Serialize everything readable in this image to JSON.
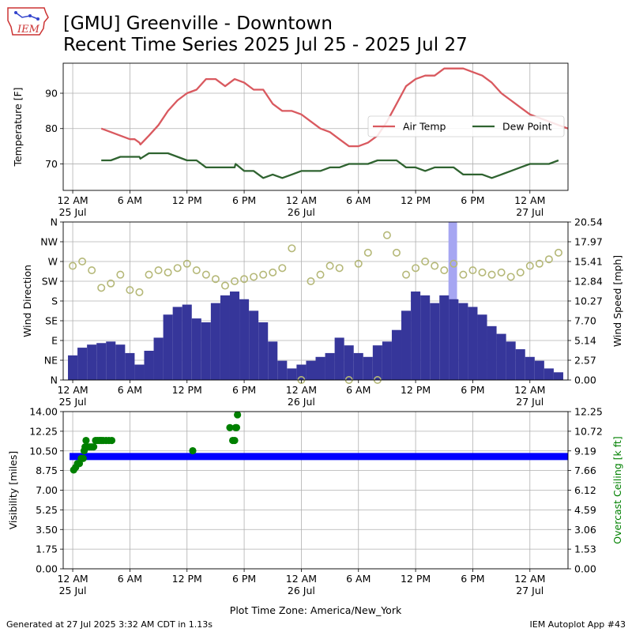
{
  "header": {
    "title_line1": "[GMU] Greenville - Downtown",
    "title_line2": "Recent Time Series 2025 Jul 25 - 2025 Jul 27",
    "logo_text": "IEM"
  },
  "footer": {
    "generated": "Generated at 27 Jul 2025 3:32 AM CDT in 1.13s",
    "app": "IEM Autoplot App #43"
  },
  "colors": {
    "air_temp": "#d9595f",
    "dew_point": "#2f6330",
    "wind_speed": "#36369a",
    "wind_gust": "#a6a6f2",
    "wind_dir": "#b5b878",
    "visibility": "#0000ff",
    "ceiling": "#008000"
  },
  "x_axis": {
    "tick_labels": [
      "12 AM",
      "6 AM",
      "12 PM",
      "6 PM",
      "12 AM",
      "6 AM",
      "12 PM",
      "6 PM",
      "12 AM"
    ],
    "date_labels": [
      "25 Jul",
      "",
      "",
      "",
      "26 Jul",
      "",
      "",
      "",
      "27 Jul"
    ],
    "xlabel": "Plot Time Zone: America/New_York"
  },
  "chart_data": [
    {
      "type": "line",
      "name": "temperature",
      "ylabel": "Temperature [F]",
      "ylim": [
        62.5,
        98.5
      ],
      "yticks": [
        70,
        80,
        90
      ],
      "xlim": [
        -1,
        52
      ],
      "grid": true,
      "legend": "right",
      "series": [
        {
          "name": "Air Temp",
          "x": [
            3,
            4,
            5,
            6,
            6.5,
            7,
            7.1,
            8,
            9,
            10,
            11,
            12,
            13,
            14,
            15,
            16,
            17,
            18,
            19,
            20,
            21,
            22,
            23,
            24,
            25,
            26,
            27,
            28,
            29,
            30,
            31,
            32,
            33,
            34,
            35,
            36,
            37,
            38,
            39,
            40,
            41,
            42,
            43,
            44,
            45,
            46,
            47,
            48,
            49,
            50,
            51,
            52
          ],
          "values": [
            80,
            79,
            78,
            77,
            77,
            76,
            75.5,
            78,
            81,
            85,
            88,
            90,
            91,
            94,
            94,
            92,
            94,
            93,
            91,
            91,
            87,
            85,
            85,
            84,
            82,
            80,
            79,
            77,
            75,
            75,
            76,
            78,
            82,
            87,
            92,
            94,
            95,
            95,
            97,
            97,
            97,
            96,
            95,
            93,
            90,
            88,
            86,
            84,
            83,
            82,
            81,
            80
          ]
        },
        {
          "name": "Dew Point",
          "x": [
            3,
            4,
            5,
            6,
            7,
            7.1,
            8,
            9,
            10,
            11,
            12,
            13,
            14,
            15,
            16,
            17,
            17.1,
            18,
            19,
            20,
            21,
            22,
            23,
            24,
            25,
            26,
            27,
            28,
            29,
            30,
            31,
            32,
            33,
            34,
            35,
            36,
            37,
            38,
            39,
            40,
            41,
            42,
            43,
            44,
            45,
            46,
            47,
            48,
            49,
            50,
            51
          ],
          "values": [
            71,
            71,
            72,
            72,
            72,
            71.5,
            73,
            73,
            73,
            72,
            71,
            71,
            69,
            69,
            69,
            69,
            70,
            68,
            68,
            66,
            67,
            66,
            67,
            68,
            68,
            68,
            69,
            69,
            70,
            70,
            70,
            71,
            71,
            71,
            69,
            69,
            68,
            69,
            69,
            69,
            67,
            67,
            67,
            66,
            67,
            68,
            69,
            70,
            70,
            70,
            71
          ]
        }
      ]
    },
    {
      "type": "bar",
      "name": "wind",
      "ylabel": "Wind Direction",
      "ylabel_right": "Wind Speed [mph]",
      "direction_ticks": [
        "N",
        "NE",
        "E",
        "SE",
        "S",
        "SW",
        "W",
        "NW",
        "N"
      ],
      "speed_ticks": [
        "0.00",
        "2.57",
        "5.14",
        "7.70",
        "10.27",
        "12.84",
        "15.41",
        "17.97",
        "20.54"
      ],
      "ylim_speed": [
        0,
        20.54
      ],
      "xlim": [
        -1,
        52
      ],
      "grid": true,
      "wind_speed": {
        "x": [
          0,
          1,
          2,
          3,
          4,
          5,
          6,
          7,
          8,
          9,
          10,
          11,
          12,
          13,
          14,
          15,
          16,
          17,
          18,
          19,
          20,
          21,
          22,
          23,
          24,
          25,
          26,
          27,
          28,
          29,
          30,
          31,
          32,
          33,
          34,
          35,
          36,
          37,
          38,
          39,
          40,
          41,
          42,
          43,
          44,
          45,
          46,
          47,
          48,
          49,
          50,
          51
        ],
        "values": [
          3.2,
          4.2,
          4.6,
          4.8,
          5,
          4.6,
          3.5,
          2,
          3.8,
          5.5,
          8.5,
          9.5,
          9.8,
          8,
          7.5,
          10,
          11,
          11.5,
          10.5,
          9,
          7.5,
          5,
          2.5,
          1.5,
          2,
          2.5,
          3,
          3.5,
          5.5,
          4.5,
          3.5,
          3,
          4.5,
          5,
          6.5,
          9,
          11.5,
          11,
          10,
          11,
          10.5,
          10,
          9.5,
          8.5,
          7,
          6,
          5,
          4,
          3,
          2.5,
          1.5,
          1
        ]
      },
      "wind_gust": {
        "x": [
          40
        ],
        "values": [
          20.54
        ]
      },
      "wind_direction_deg": {
        "x": [
          0,
          1,
          2,
          3,
          4,
          5,
          6,
          7,
          8,
          9,
          10,
          11,
          12,
          13,
          14,
          15,
          16,
          17,
          18,
          19,
          20,
          21,
          22,
          23,
          24,
          25,
          26,
          27,
          28,
          29,
          30,
          31,
          32,
          33,
          34,
          35,
          36,
          37,
          38,
          39,
          40,
          41,
          42,
          43,
          44,
          45,
          46,
          47,
          48,
          49,
          50,
          51
        ],
        "values": [
          260,
          270,
          250,
          210,
          220,
          240,
          205,
          200,
          240,
          250,
          245,
          255,
          265,
          250,
          240,
          230,
          215,
          225,
          230,
          235,
          240,
          245,
          255,
          300,
          0,
          225,
          240,
          260,
          255,
          0,
          265,
          290,
          0,
          330,
          290,
          240,
          255,
          270,
          260,
          250,
          265,
          240,
          250,
          245,
          240,
          245,
          235,
          245,
          260,
          265,
          275,
          290
        ]
      }
    },
    {
      "type": "scatter",
      "name": "visibility",
      "ylabel": "Visibility [miles]",
      "ylabel_right": "Overcast Ceiling [k ft]",
      "vis_ticks": [
        "0.00",
        "1.75",
        "3.50",
        "5.25",
        "7.00",
        "8.75",
        "10.50",
        "12.25",
        "14.00"
      ],
      "ceiling_ticks": [
        "0.00",
        "1.53",
        "3.06",
        "4.59",
        "6.12",
        "7.66",
        "9.19",
        "10.72",
        "12.25"
      ],
      "ylim_vis": [
        0,
        14
      ],
      "ylim_ceiling": [
        0,
        12.25
      ],
      "xlim": [
        -1,
        52
      ],
      "grid": true,
      "visibility": {
        "x_range": [
          0,
          52
        ],
        "value": 10
      },
      "ceiling": {
        "x": [
          0.1,
          0.3,
          0.5,
          0.7,
          0.9,
          1.1,
          1.2,
          1.3,
          1.4,
          1.5,
          1.6,
          1.8,
          2.0,
          2.2,
          2.4,
          2.6,
          2.8,
          3.0,
          3.2,
          3.5,
          3.8,
          4.1,
          12.6,
          16.5,
          16.8,
          17.0,
          17.1,
          17.2,
          17.3
        ],
        "values": [
          7.7,
          7.9,
          8.2,
          8.2,
          8.6,
          8.6,
          9.2,
          9.5,
          10.0,
          9.5,
          9.5,
          9.5,
          9.5,
          9.5,
          10.0,
          10.0,
          10.0,
          10.0,
          10.0,
          10.0,
          10.0,
          10.0,
          9.2,
          11.0,
          10.0,
          10.0,
          11.0,
          11.0,
          12.0
        ]
      }
    }
  ]
}
